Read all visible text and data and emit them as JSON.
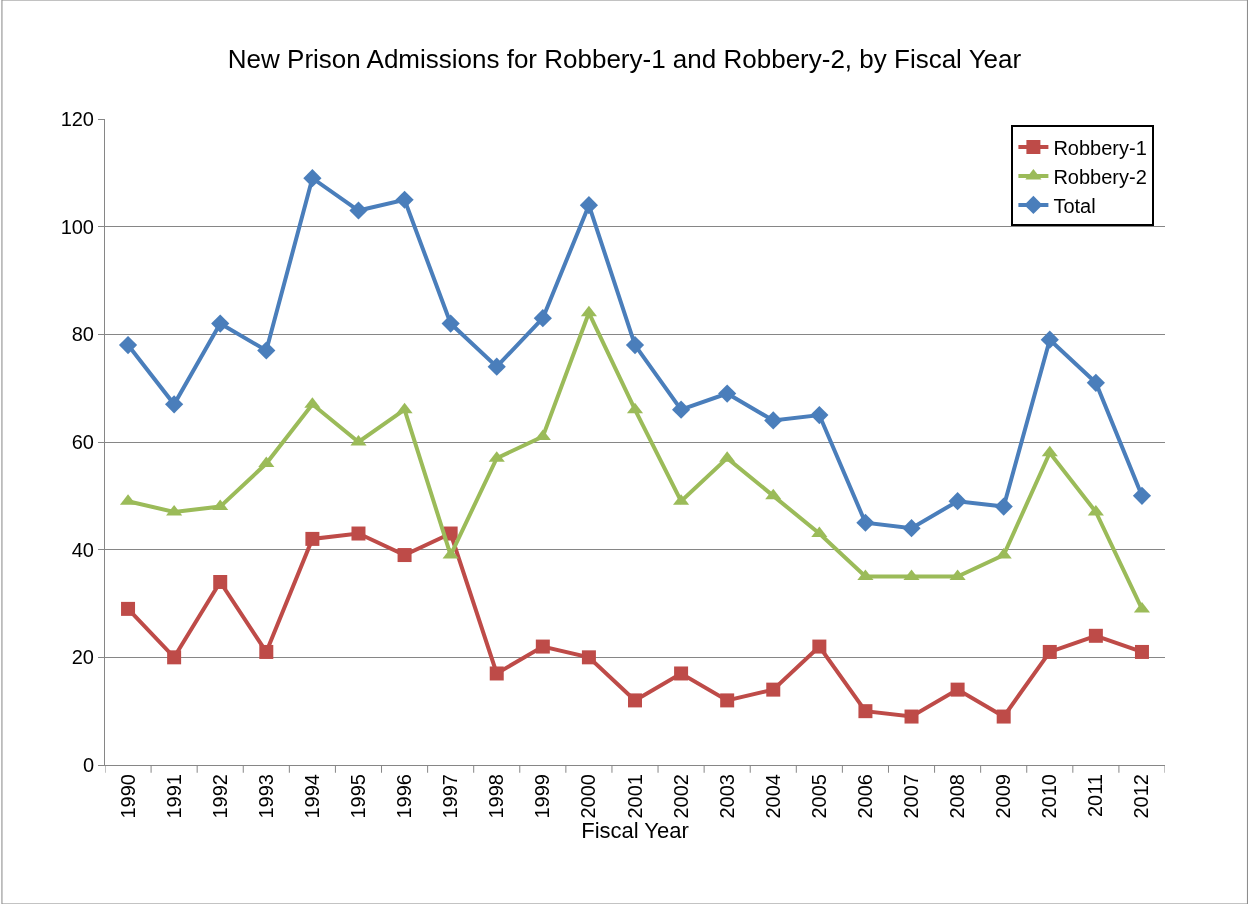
{
  "chart_data": {
    "type": "line",
    "title": "New Prison Admissions for Robbery-1 and Robbery-2, by Fiscal Year",
    "xlabel": "Fiscal Year",
    "categories": [
      "1990",
      "1991",
      "1992",
      "1993",
      "1994",
      "1995",
      "1996",
      "1997",
      "1998",
      "1999",
      "2000",
      "2001",
      "2002",
      "2003",
      "2004",
      "2005",
      "2006",
      "2007",
      "2008",
      "2009",
      "2010",
      "2011",
      "2012"
    ],
    "series": [
      {
        "name": "Robbery-1",
        "color": "#be4b48",
        "marker": "square",
        "values": [
          29,
          20,
          34,
          21,
          42,
          43,
          39,
          43,
          17,
          22,
          20,
          12,
          17,
          12,
          14,
          22,
          10,
          9,
          14,
          9,
          21,
          24,
          21
        ]
      },
      {
        "name": "Robbery-2",
        "color": "#9bbb59",
        "marker": "triangle",
        "values": [
          49,
          47,
          48,
          56,
          67,
          60,
          66,
          39,
          57,
          61,
          84,
          66,
          49,
          57,
          50,
          43,
          35,
          35,
          35,
          39,
          58,
          47,
          29
        ]
      },
      {
        "name": "Total",
        "color": "#4a7ebb",
        "marker": "diamond",
        "values": [
          78,
          67,
          82,
          77,
          109,
          103,
          105,
          82,
          74,
          83,
          104,
          78,
          66,
          69,
          64,
          65,
          45,
          44,
          49,
          48,
          79,
          71,
          50
        ]
      }
    ],
    "ylim": [
      0,
      120
    ],
    "yticks": [
      0,
      20,
      40,
      60,
      80,
      100,
      120
    ],
    "grid": "y",
    "legend": "top right",
    "line_style": "solid"
  }
}
